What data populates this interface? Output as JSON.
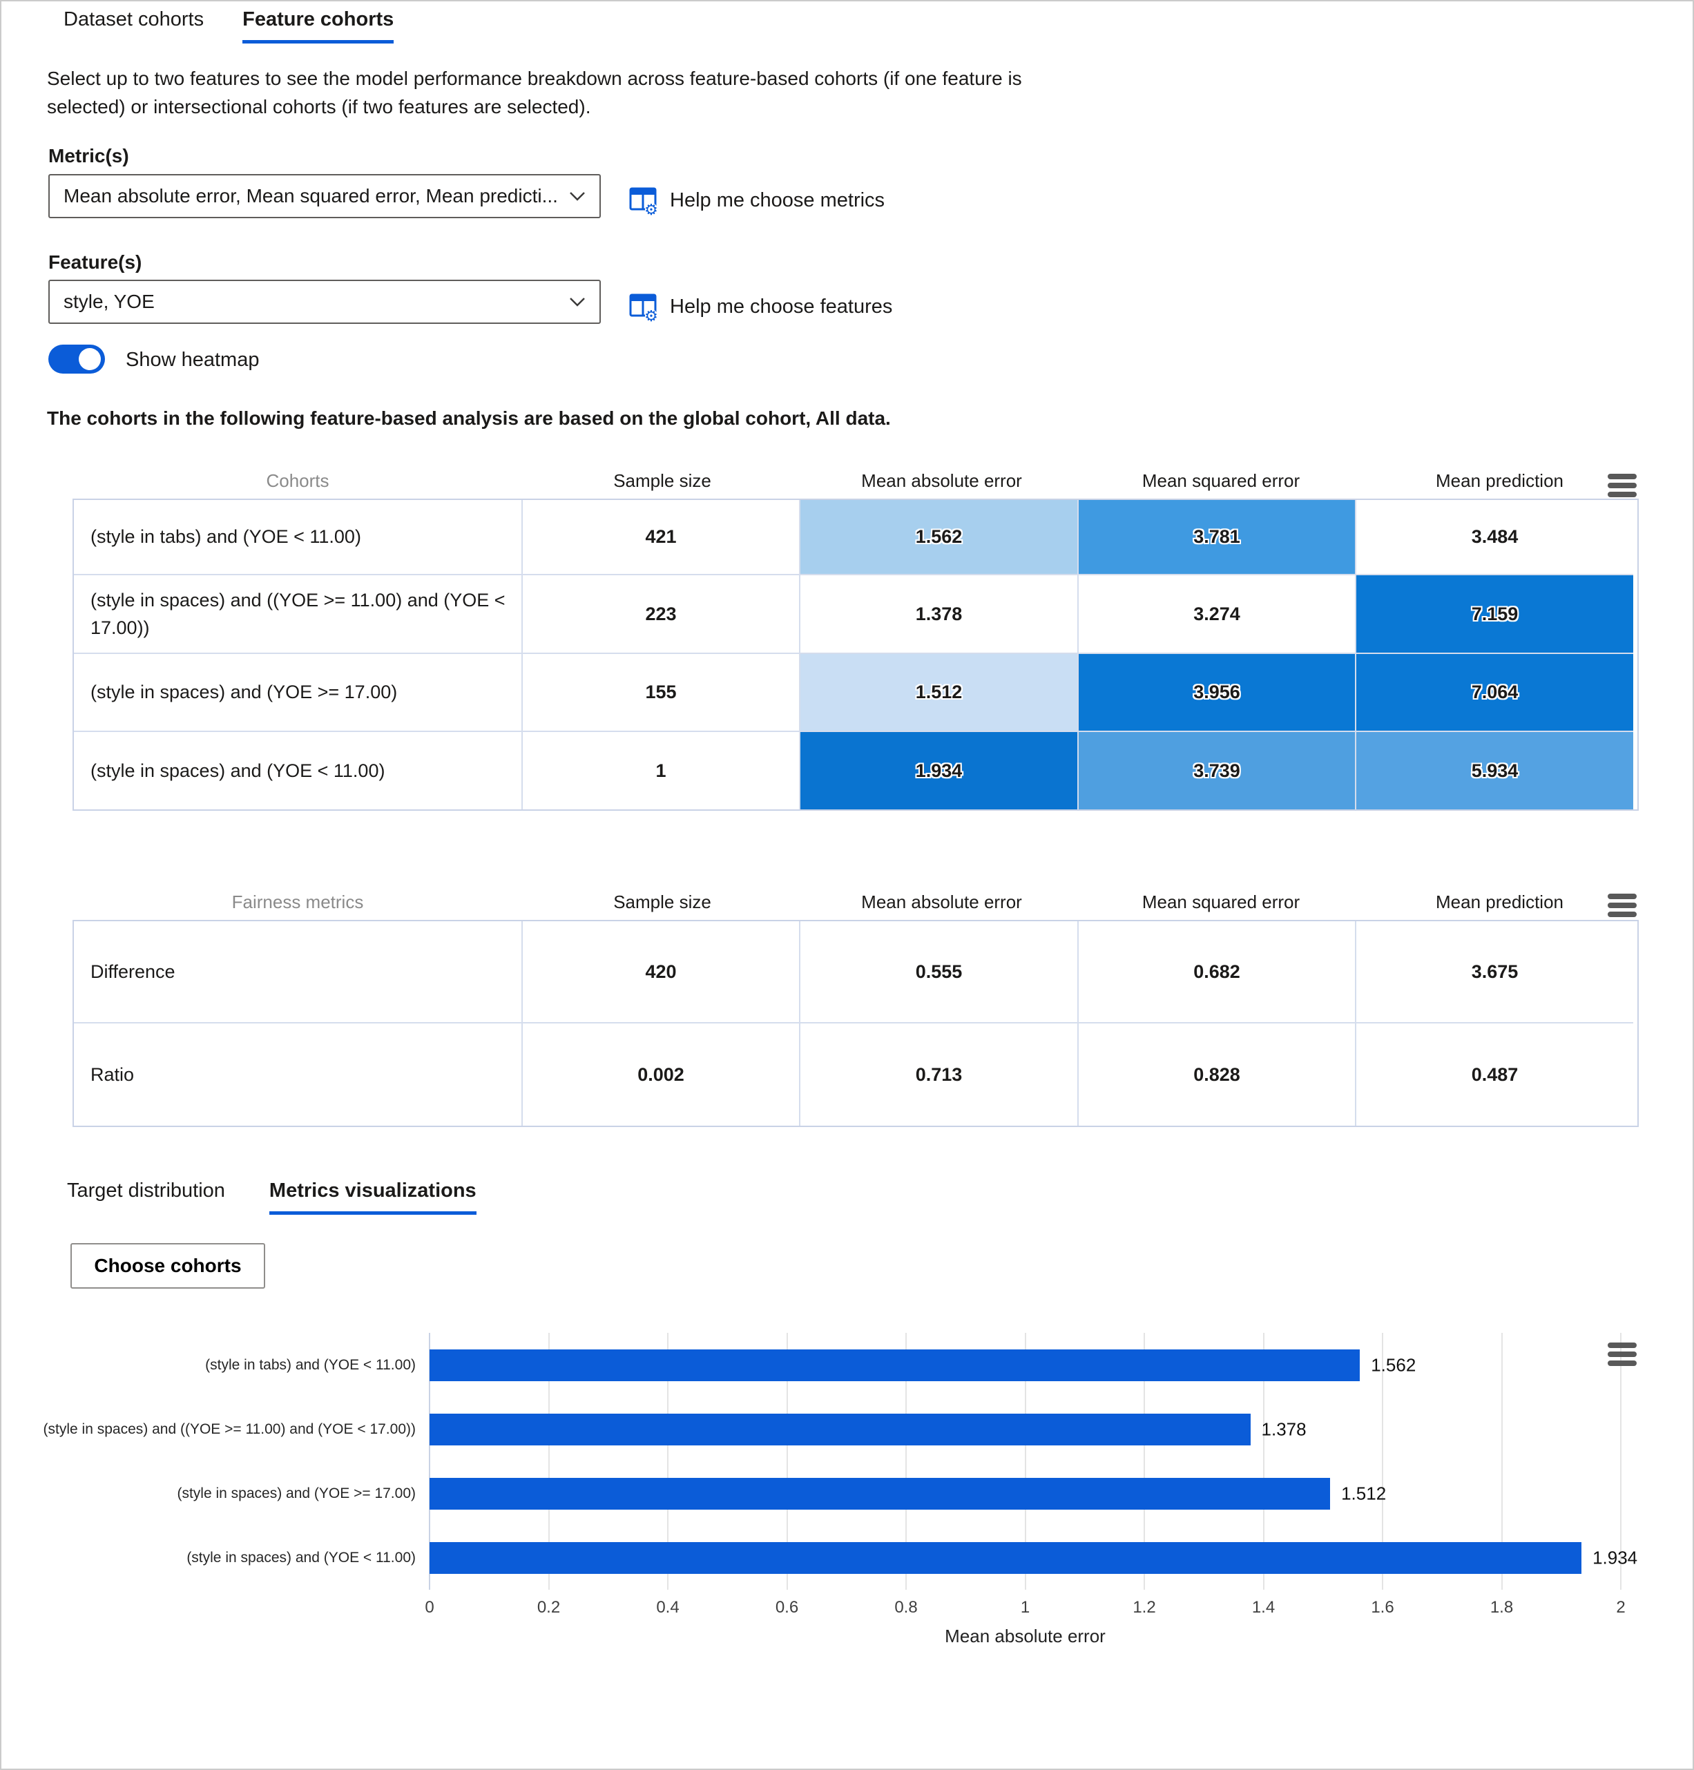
{
  "tabs": {
    "dataset": "Dataset cohorts",
    "feature": "Feature cohorts"
  },
  "description": "Select up to two features to see the model performance breakdown across feature-based cohorts (if one feature is selected) or intersectional cohorts (if two features are selected).",
  "metrics": {
    "label": "Metric(s)",
    "value": "Mean absolute error, Mean squared error, Mean predicti...",
    "help_label": "Help me choose metrics"
  },
  "features": {
    "label": "Feature(s)",
    "value": "style, YOE",
    "help_label": "Help me choose features"
  },
  "toggle": {
    "label": "Show heatmap",
    "state": "on"
  },
  "note": "The cohorts in the following feature-based analysis are based on the global cohort, All data.",
  "cohort_table": {
    "headers": [
      "Cohorts",
      "Sample size",
      "Mean absolute error",
      "Mean squared error",
      "Mean prediction"
    ],
    "rows": [
      {
        "name": "(style in tabs) and (YOE < 11.00)",
        "sample_size": "421",
        "cells": [
          {
            "value": "1.562",
            "bg": "#a7cfee",
            "halo": true
          },
          {
            "value": "3.781",
            "bg": "#3f9ae1",
            "halo": true
          },
          {
            "value": "3.484",
            "bg": "#ffffff",
            "halo": false
          }
        ]
      },
      {
        "name": "(style in spaces) and ((YOE >= 11.00) and (YOE < 17.00))",
        "sample_size": "223",
        "cells": [
          {
            "value": "1.378",
            "bg": "#ffffff",
            "halo": false
          },
          {
            "value": "3.274",
            "bg": "#ffffff",
            "halo": false
          },
          {
            "value": "7.159",
            "bg": "#0a78d4",
            "halo": true
          }
        ]
      },
      {
        "name": "(style in spaces) and (YOE >= 17.00)",
        "sample_size": "155",
        "cells": [
          {
            "value": "1.512",
            "bg": "#c9def4",
            "halo": true
          },
          {
            "value": "3.956",
            "bg": "#0a78d4",
            "halo": true
          },
          {
            "value": "7.064",
            "bg": "#0a78d4",
            "halo": true
          }
        ]
      },
      {
        "name": "(style in spaces) and (YOE < 11.00)",
        "sample_size": "1",
        "cells": [
          {
            "value": "1.934",
            "bg": "#0a74d0",
            "halo": true
          },
          {
            "value": "3.739",
            "bg": "#4f9fe0",
            "halo": true
          },
          {
            "value": "5.934",
            "bg": "#54a2e2",
            "halo": true
          }
        ]
      }
    ]
  },
  "fairness_table": {
    "headers": [
      "Fairness metrics",
      "Sample size",
      "Mean absolute error",
      "Mean squared error",
      "Mean prediction"
    ],
    "rows": [
      {
        "name": "Difference",
        "values": [
          "420",
          "0.555",
          "0.682",
          "3.675"
        ]
      },
      {
        "name": "Ratio",
        "values": [
          "0.002",
          "0.713",
          "0.828",
          "0.487"
        ]
      }
    ]
  },
  "subtabs": {
    "target": "Target distribution",
    "metrics_viz": "Metrics visualizations"
  },
  "choose_cohorts_label": "Choose cohorts",
  "chart_data": {
    "type": "bar",
    "orientation": "horizontal",
    "categories": [
      "(style in tabs) and (YOE < 11.00)",
      "(style in spaces) and ((YOE >= 11.00) and (YOE < 17.00))",
      "(style in spaces) and (YOE >= 17.00)",
      "(style in spaces) and (YOE < 11.00)"
    ],
    "values": [
      1.562,
      1.378,
      1.512,
      1.934
    ],
    "value_labels": [
      "1.562",
      "1.378",
      "1.512",
      "1.934"
    ],
    "xlabel": "Mean absolute error",
    "xlim": [
      0,
      2
    ],
    "xticks": [
      0,
      0.2,
      0.4,
      0.6,
      0.8,
      1,
      1.2,
      1.4,
      1.6,
      1.8,
      2
    ],
    "xtick_labels": [
      "0",
      "0.2",
      "0.4",
      "0.6",
      "0.8",
      "1",
      "1.2",
      "1.4",
      "1.6",
      "1.8",
      "2"
    ],
    "bar_color": "#0b5cd8",
    "grid": true,
    "legend": "none"
  },
  "colors": {
    "accent": "#0b5cd8",
    "heatmap_strong": "#0a78d4",
    "heatmap_medium": "#4f9fe0",
    "heatmap_light": "#a7cfee",
    "table_border": "#c9d2e6"
  },
  "icons": {
    "help": "table-settings-icon",
    "menu": "menu-icon",
    "chevron": "chevron-down-icon"
  }
}
